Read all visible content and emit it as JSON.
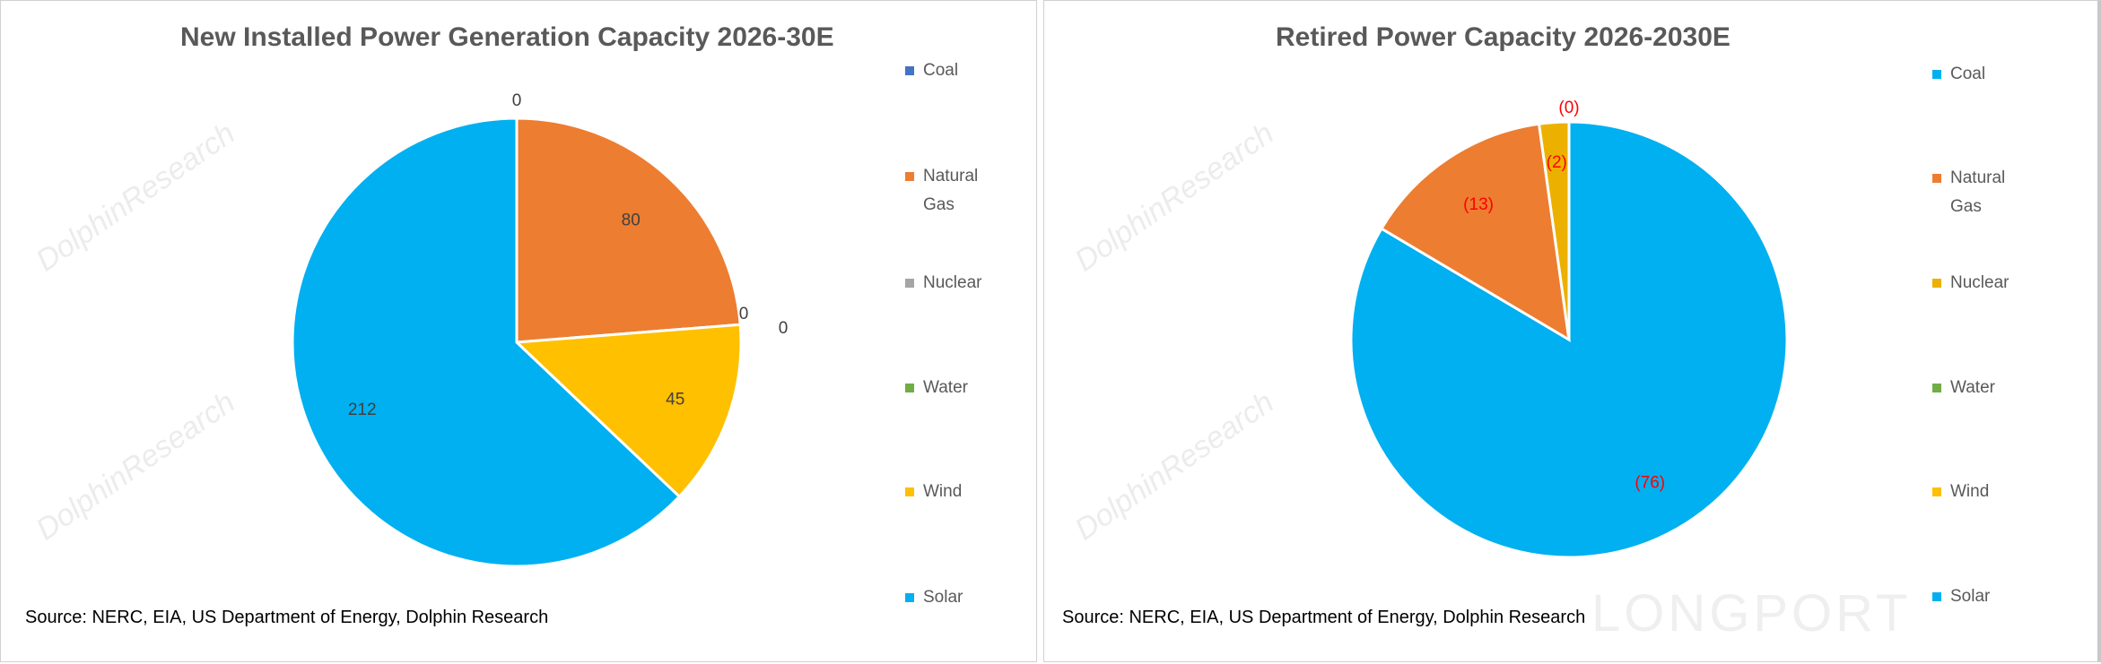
{
  "watermark": "DolphinResearch",
  "brand_watermark": "LONGPORT",
  "chart_data": [
    {
      "type": "pie",
      "title": "New Installed Power Generation Capacity 2026-30E",
      "categories": [
        "Coal",
        "Natural Gas",
        "Nuclear",
        "Water",
        "Wind",
        "Solar"
      ],
      "values": [
        0,
        80,
        0,
        0,
        45,
        212
      ],
      "data_labels": [
        "0",
        "80",
        "0",
        "0",
        "45",
        "212"
      ],
      "colors": [
        "#4472C4",
        "#ED7D31",
        "#A5A5A5",
        "#70AD47",
        "#FFC000",
        "#00B0F0"
      ],
      "label_color": "#404040",
      "legend_position": "right",
      "source": "Source: NERC, EIA, US Department of Energy, Dolphin Research"
    },
    {
      "type": "pie",
      "title": "Retired Power Capacity 2026-2030E",
      "categories": [
        "Coal",
        "Natural Gas",
        "Nuclear",
        "Water",
        "Wind",
        "Solar"
      ],
      "values": [
        76,
        13,
        2,
        0,
        0,
        0
      ],
      "data_labels": [
        "(76)",
        "(13)",
        "(2)",
        "(0)",
        "",
        ""
      ],
      "colors": [
        "#00B0F0",
        "#ED7D31",
        "#ECB100",
        "#70AD47",
        "#FFC000",
        "#00B0F0"
      ],
      "label_color": "#FF0000",
      "legend_position": "right",
      "source": "Source: NERC, EIA, US Department of Energy, Dolphin Research"
    }
  ]
}
